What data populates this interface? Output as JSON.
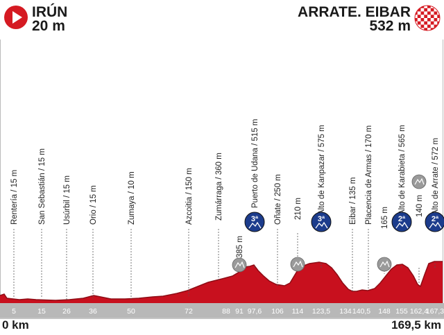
{
  "start": {
    "name": "IRÚN",
    "altitude": "20 m"
  },
  "finish": {
    "name": "ARRATE. EIBAR",
    "altitude": "532 m"
  },
  "axis": {
    "start_label": "0 km",
    "end_label": "169,5 km"
  },
  "km_marks": [
    "5",
    "15",
    "26",
    "36",
    "50",
    "72",
    "88",
    "91",
    "97,6",
    "106",
    "114",
    "123,5",
    "134",
    "140,5",
    "148",
    "155",
    "162,4",
    "167,3"
  ],
  "places": [
    "Rentería / 15 m",
    "San Sebastián / 15 m",
    "Usúrbil / 15 m",
    "Orio / 15 m",
    "Zumaya / 10 m",
    "Azcoitia / 150 m",
    "Zumárraga / 360 m",
    "385 m",
    "Puerto de Udana / 515 m",
    "Oñate / 250 m",
    "210 m",
    "Alto de Kanpazar / 575 m",
    "Eibar / 135 m",
    "Placencia de Armas / 170 m",
    "165 m",
    "Alto de Karabieta / 565 m",
    "140 m",
    "Alto de Arrate / 572 m"
  ],
  "climb_badges": [
    "3ª",
    "3ª",
    "2ª",
    "2ª"
  ],
  "colors": {
    "profile": "#c8101e",
    "profile_dark": "#8e0c15",
    "baseline": "#b8b8b8",
    "badge_blue": "#1c3c8c",
    "badge_grey": "#9a9a9a"
  },
  "icons": {
    "start": "play-triangle-icon",
    "finish": "checkered-flag-icon"
  }
}
